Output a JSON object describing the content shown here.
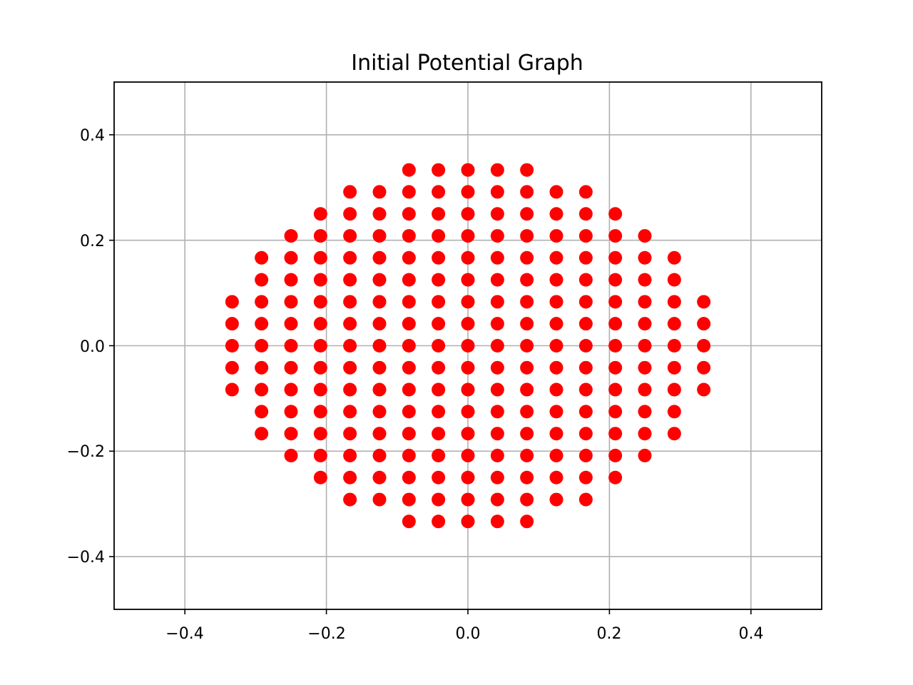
{
  "chart_data": {
    "type": "scatter",
    "title": "Initial Potential Graph",
    "xlabel": "",
    "ylabel": "",
    "xlim": [
      -0.5,
      0.5
    ],
    "ylim": [
      -0.5,
      0.5
    ],
    "x_ticks": [
      -0.4,
      -0.2,
      0.0,
      0.2,
      0.4
    ],
    "y_ticks": [
      -0.4,
      -0.2,
      0.0,
      0.2,
      0.4
    ],
    "x_tick_labels": [
      "−0.4",
      "−0.2",
      "0.0",
      "0.2",
      "0.4"
    ],
    "y_tick_labels": [
      "−0.4",
      "−0.2",
      "0.0",
      "0.2",
      "0.4"
    ],
    "grid": true,
    "marker_color": "#ff0000",
    "grid_spacing": 0.041667,
    "series": [
      {
        "points": [
          [
            -0.0833,
            0.3333
          ],
          [
            -0.0417,
            0.3333
          ],
          [
            0.0,
            0.3333
          ],
          [
            0.0417,
            0.3333
          ],
          [
            0.0833,
            0.3333
          ],
          [
            -0.1667,
            0.2917
          ],
          [
            -0.125,
            0.2917
          ],
          [
            -0.0833,
            0.2917
          ],
          [
            -0.0417,
            0.2917
          ],
          [
            0.0,
            0.2917
          ],
          [
            0.0417,
            0.2917
          ],
          [
            0.0833,
            0.2917
          ],
          [
            0.125,
            0.2917
          ],
          [
            0.1667,
            0.2917
          ],
          [
            -0.2083,
            0.25
          ],
          [
            -0.1667,
            0.25
          ],
          [
            -0.125,
            0.25
          ],
          [
            -0.0833,
            0.25
          ],
          [
            -0.0417,
            0.25
          ],
          [
            0.0,
            0.25
          ],
          [
            0.0417,
            0.25
          ],
          [
            0.0833,
            0.25
          ],
          [
            0.125,
            0.25
          ],
          [
            0.1667,
            0.25
          ],
          [
            0.2083,
            0.25
          ],
          [
            -0.25,
            0.2083
          ],
          [
            -0.2083,
            0.2083
          ],
          [
            -0.1667,
            0.2083
          ],
          [
            -0.125,
            0.2083
          ],
          [
            -0.0833,
            0.2083
          ],
          [
            -0.0417,
            0.2083
          ],
          [
            0.0,
            0.2083
          ],
          [
            0.0417,
            0.2083
          ],
          [
            0.0833,
            0.2083
          ],
          [
            0.125,
            0.2083
          ],
          [
            0.1667,
            0.2083
          ],
          [
            0.2083,
            0.2083
          ],
          [
            0.25,
            0.2083
          ],
          [
            -0.2917,
            0.1667
          ],
          [
            -0.25,
            0.1667
          ],
          [
            -0.2083,
            0.1667
          ],
          [
            -0.1667,
            0.1667
          ],
          [
            -0.125,
            0.1667
          ],
          [
            -0.0833,
            0.1667
          ],
          [
            -0.0417,
            0.1667
          ],
          [
            0.0,
            0.1667
          ],
          [
            0.0417,
            0.1667
          ],
          [
            0.0833,
            0.1667
          ],
          [
            0.125,
            0.1667
          ],
          [
            0.1667,
            0.1667
          ],
          [
            0.2083,
            0.1667
          ],
          [
            0.25,
            0.1667
          ],
          [
            0.2917,
            0.1667
          ],
          [
            -0.2917,
            0.125
          ],
          [
            -0.25,
            0.125
          ],
          [
            -0.2083,
            0.125
          ],
          [
            -0.1667,
            0.125
          ],
          [
            -0.125,
            0.125
          ],
          [
            -0.0833,
            0.125
          ],
          [
            -0.0417,
            0.125
          ],
          [
            0.0,
            0.125
          ],
          [
            0.0417,
            0.125
          ],
          [
            0.0833,
            0.125
          ],
          [
            0.125,
            0.125
          ],
          [
            0.1667,
            0.125
          ],
          [
            0.2083,
            0.125
          ],
          [
            0.25,
            0.125
          ],
          [
            0.2917,
            0.125
          ],
          [
            -0.3333,
            0.0833
          ],
          [
            -0.2917,
            0.0833
          ],
          [
            -0.25,
            0.0833
          ],
          [
            -0.2083,
            0.0833
          ],
          [
            -0.1667,
            0.0833
          ],
          [
            -0.125,
            0.0833
          ],
          [
            -0.0833,
            0.0833
          ],
          [
            -0.0417,
            0.0833
          ],
          [
            0.0,
            0.0833
          ],
          [
            0.0417,
            0.0833
          ],
          [
            0.0833,
            0.0833
          ],
          [
            0.125,
            0.0833
          ],
          [
            0.1667,
            0.0833
          ],
          [
            0.2083,
            0.0833
          ],
          [
            0.25,
            0.0833
          ],
          [
            0.2917,
            0.0833
          ],
          [
            0.3333,
            0.0833
          ],
          [
            -0.3333,
            0.0417
          ],
          [
            -0.2917,
            0.0417
          ],
          [
            -0.25,
            0.0417
          ],
          [
            -0.2083,
            0.0417
          ],
          [
            -0.1667,
            0.0417
          ],
          [
            -0.125,
            0.0417
          ],
          [
            -0.0833,
            0.0417
          ],
          [
            -0.0417,
            0.0417
          ],
          [
            0.0,
            0.0417
          ],
          [
            0.0417,
            0.0417
          ],
          [
            0.0833,
            0.0417
          ],
          [
            0.125,
            0.0417
          ],
          [
            0.1667,
            0.0417
          ],
          [
            0.2083,
            0.0417
          ],
          [
            0.25,
            0.0417
          ],
          [
            0.2917,
            0.0417
          ],
          [
            0.3333,
            0.0417
          ],
          [
            -0.3333,
            0.0
          ],
          [
            -0.2917,
            0.0
          ],
          [
            -0.25,
            0.0
          ],
          [
            -0.2083,
            0.0
          ],
          [
            -0.1667,
            0.0
          ],
          [
            -0.125,
            0.0
          ],
          [
            -0.0833,
            0.0
          ],
          [
            -0.0417,
            0.0
          ],
          [
            0.0,
            0.0
          ],
          [
            0.0417,
            0.0
          ],
          [
            0.0833,
            0.0
          ],
          [
            0.125,
            0.0
          ],
          [
            0.1667,
            0.0
          ],
          [
            0.2083,
            0.0
          ],
          [
            0.25,
            0.0
          ],
          [
            0.2917,
            0.0
          ],
          [
            0.3333,
            0.0
          ],
          [
            -0.3333,
            -0.0417
          ],
          [
            -0.2917,
            -0.0417
          ],
          [
            -0.25,
            -0.0417
          ],
          [
            -0.2083,
            -0.0417
          ],
          [
            -0.1667,
            -0.0417
          ],
          [
            -0.125,
            -0.0417
          ],
          [
            -0.0833,
            -0.0417
          ],
          [
            -0.0417,
            -0.0417
          ],
          [
            0.0,
            -0.0417
          ],
          [
            0.0417,
            -0.0417
          ],
          [
            0.0833,
            -0.0417
          ],
          [
            0.125,
            -0.0417
          ],
          [
            0.1667,
            -0.0417
          ],
          [
            0.2083,
            -0.0417
          ],
          [
            0.25,
            -0.0417
          ],
          [
            0.2917,
            -0.0417
          ],
          [
            0.3333,
            -0.0417
          ],
          [
            -0.3333,
            -0.0833
          ],
          [
            -0.2917,
            -0.0833
          ],
          [
            -0.25,
            -0.0833
          ],
          [
            -0.2083,
            -0.0833
          ],
          [
            -0.1667,
            -0.0833
          ],
          [
            -0.125,
            -0.0833
          ],
          [
            -0.0833,
            -0.0833
          ],
          [
            -0.0417,
            -0.0833
          ],
          [
            0.0,
            -0.0833
          ],
          [
            0.0417,
            -0.0833
          ],
          [
            0.0833,
            -0.0833
          ],
          [
            0.125,
            -0.0833
          ],
          [
            0.1667,
            -0.0833
          ],
          [
            0.2083,
            -0.0833
          ],
          [
            0.25,
            -0.0833
          ],
          [
            0.2917,
            -0.0833
          ],
          [
            0.3333,
            -0.0833
          ],
          [
            -0.2917,
            -0.125
          ],
          [
            -0.25,
            -0.125
          ],
          [
            -0.2083,
            -0.125
          ],
          [
            -0.1667,
            -0.125
          ],
          [
            -0.125,
            -0.125
          ],
          [
            -0.0833,
            -0.125
          ],
          [
            -0.0417,
            -0.125
          ],
          [
            0.0,
            -0.125
          ],
          [
            0.0417,
            -0.125
          ],
          [
            0.0833,
            -0.125
          ],
          [
            0.125,
            -0.125
          ],
          [
            0.1667,
            -0.125
          ],
          [
            0.2083,
            -0.125
          ],
          [
            0.25,
            -0.125
          ],
          [
            0.2917,
            -0.125
          ],
          [
            -0.2917,
            -0.1667
          ],
          [
            -0.25,
            -0.1667
          ],
          [
            -0.2083,
            -0.1667
          ],
          [
            -0.1667,
            -0.1667
          ],
          [
            -0.125,
            -0.1667
          ],
          [
            -0.0833,
            -0.1667
          ],
          [
            -0.0417,
            -0.1667
          ],
          [
            0.0,
            -0.1667
          ],
          [
            0.0417,
            -0.1667
          ],
          [
            0.0833,
            -0.1667
          ],
          [
            0.125,
            -0.1667
          ],
          [
            0.1667,
            -0.1667
          ],
          [
            0.2083,
            -0.1667
          ],
          [
            0.25,
            -0.1667
          ],
          [
            0.2917,
            -0.1667
          ],
          [
            -0.25,
            -0.2083
          ],
          [
            -0.2083,
            -0.2083
          ],
          [
            -0.1667,
            -0.2083
          ],
          [
            -0.125,
            -0.2083
          ],
          [
            -0.0833,
            -0.2083
          ],
          [
            -0.0417,
            -0.2083
          ],
          [
            0.0,
            -0.2083
          ],
          [
            0.0417,
            -0.2083
          ],
          [
            0.0833,
            -0.2083
          ],
          [
            0.125,
            -0.2083
          ],
          [
            0.1667,
            -0.2083
          ],
          [
            0.2083,
            -0.2083
          ],
          [
            0.25,
            -0.2083
          ],
          [
            -0.2083,
            -0.25
          ],
          [
            -0.1667,
            -0.25
          ],
          [
            -0.125,
            -0.25
          ],
          [
            -0.0833,
            -0.25
          ],
          [
            -0.0417,
            -0.25
          ],
          [
            0.0,
            -0.25
          ],
          [
            0.0417,
            -0.25
          ],
          [
            0.0833,
            -0.25
          ],
          [
            0.125,
            -0.25
          ],
          [
            0.1667,
            -0.25
          ],
          [
            0.2083,
            -0.25
          ],
          [
            -0.1667,
            -0.2917
          ],
          [
            -0.125,
            -0.2917
          ],
          [
            -0.0833,
            -0.2917
          ],
          [
            -0.0417,
            -0.2917
          ],
          [
            0.0,
            -0.2917
          ],
          [
            0.0417,
            -0.2917
          ],
          [
            0.0833,
            -0.2917
          ],
          [
            0.125,
            -0.2917
          ],
          [
            0.1667,
            -0.2917
          ],
          [
            -0.0833,
            -0.3333
          ],
          [
            -0.0417,
            -0.3333
          ],
          [
            0.0,
            -0.3333
          ],
          [
            0.0417,
            -0.3333
          ],
          [
            0.0833,
            -0.3333
          ]
        ]
      }
    ]
  }
}
